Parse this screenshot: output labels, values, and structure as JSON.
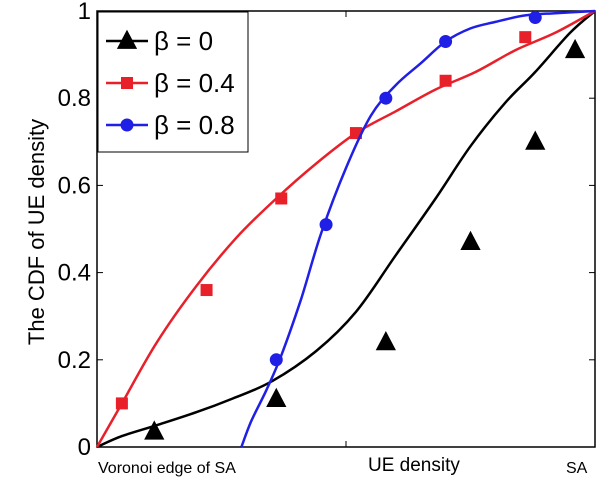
{
  "chart_data": {
    "type": "line",
    "ylabel": "The CDF of UE density",
    "x_tick_labels": {
      "left": "Voronoi edge of SA",
      "center": "UE density",
      "right": "SA"
    },
    "xlim": [
      0,
      1
    ],
    "ylim": [
      0,
      1
    ],
    "y_ticks": [
      0,
      0.2,
      0.4,
      0.6,
      0.8,
      1
    ],
    "y_tick_labels": [
      "0",
      "0.2",
      "0.4",
      "0.6",
      "0.8",
      "1"
    ],
    "x_minor_ticks": [
      0.5
    ],
    "grid": false,
    "legend_position": "top-left",
    "series": [
      {
        "name": "β = 0",
        "color": "#000000",
        "marker": "triangle",
        "x": [
          0,
          0.05,
          0.12,
          0.2,
          0.27,
          0.35,
          0.44,
          0.52,
          0.6,
          0.68,
          0.75,
          0.82,
          0.88,
          0.95,
          1.0
        ],
        "y": [
          0,
          0.025,
          0.05,
          0.08,
          0.11,
          0.15,
          0.22,
          0.31,
          0.44,
          0.57,
          0.69,
          0.79,
          0.86,
          0.95,
          1.0
        ],
        "marker_x": [
          0.115,
          0.36,
          0.58,
          0.75,
          0.88,
          0.96
        ],
        "marker_y": [
          0.035,
          0.11,
          0.24,
          0.47,
          0.7,
          0.91
        ]
      },
      {
        "name": "β = 0.4",
        "color": "#e8202a",
        "marker": "square",
        "x": [
          0,
          0.05,
          0.12,
          0.2,
          0.28,
          0.36,
          0.44,
          0.52,
          0.6,
          0.68,
          0.76,
          0.84,
          0.92,
          1.0
        ],
        "y": [
          0,
          0.1,
          0.24,
          0.37,
          0.48,
          0.57,
          0.65,
          0.72,
          0.77,
          0.82,
          0.86,
          0.91,
          0.95,
          1.0
        ],
        "marker_x": [
          0.05,
          0.22,
          0.37,
          0.52,
          0.7,
          0.86
        ],
        "marker_y": [
          0.1,
          0.36,
          0.57,
          0.72,
          0.84,
          0.94
        ]
      },
      {
        "name": "β = 0.8",
        "color": "#1f1fe6",
        "marker": "circle",
        "x": [
          0.29,
          0.31,
          0.34,
          0.37,
          0.41,
          0.45,
          0.5,
          0.55,
          0.6,
          0.65,
          0.7,
          0.75,
          0.8,
          0.86,
          0.92,
          1.0
        ],
        "y": [
          0,
          0.06,
          0.13,
          0.21,
          0.34,
          0.49,
          0.64,
          0.76,
          0.83,
          0.88,
          0.93,
          0.96,
          0.975,
          0.99,
          0.995,
          1.0
        ],
        "marker_x": [
          0.36,
          0.46,
          0.58,
          0.7,
          0.88
        ],
        "marker_y": [
          0.2,
          0.51,
          0.8,
          0.93,
          0.985
        ]
      }
    ]
  }
}
